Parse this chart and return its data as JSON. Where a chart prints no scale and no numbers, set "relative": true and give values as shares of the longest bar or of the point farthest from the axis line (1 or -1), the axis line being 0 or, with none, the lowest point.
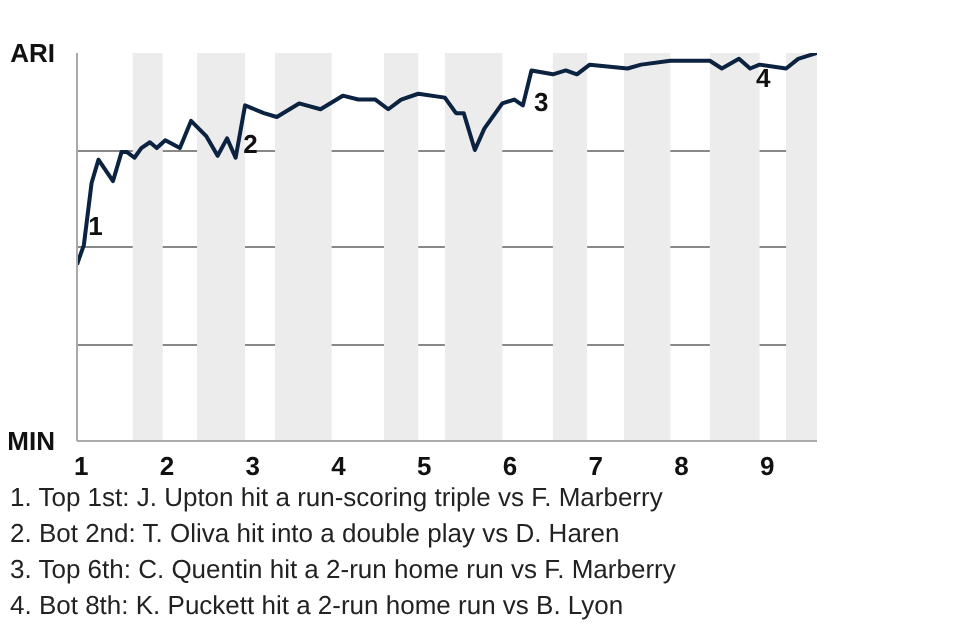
{
  "chart_data": {
    "type": "line",
    "relative": true,
    "x": [
      0.95,
      1.03,
      1.12,
      1.2,
      1.37,
      1.47,
      1.53,
      1.62,
      1.7,
      1.8,
      1.88,
      1.98,
      2.15,
      2.28,
      2.46,
      2.59,
      2.7,
      2.8,
      2.91,
      3.13,
      3.28,
      3.54,
      3.79,
      4.05,
      4.23,
      4.43,
      4.58,
      4.73,
      4.93,
      5.24,
      5.37,
      5.46,
      5.59,
      5.7,
      5.91,
      6.05,
      6.15,
      6.25,
      6.5,
      6.65,
      6.78,
      6.93,
      7.37,
      7.53,
      7.87,
      8.33,
      8.47,
      8.67,
      8.8,
      8.91,
      9.22,
      9.36,
      9.58
    ],
    "series": [
      {
        "color": "#0b2240",
        "values": [
          0.455,
          0.505,
          0.665,
          0.725,
          0.67,
          0.745,
          0.745,
          0.73,
          0.755,
          0.77,
          0.755,
          0.775,
          0.755,
          0.825,
          0.785,
          0.735,
          0.78,
          0.73,
          0.865,
          0.845,
          0.835,
          0.87,
          0.855,
          0.89,
          0.88,
          0.88,
          0.855,
          0.88,
          0.895,
          0.885,
          0.845,
          0.845,
          0.75,
          0.805,
          0.87,
          0.88,
          0.865,
          0.955,
          0.945,
          0.955,
          0.945,
          0.97,
          0.96,
          0.97,
          0.98,
          0.98,
          0.96,
          0.985,
          0.96,
          0.97,
          0.96,
          0.985,
          1.0
        ]
      }
    ],
    "xlim": [
      0.95,
      9.58
    ],
    "xticks": [
      1,
      2,
      3,
      4,
      5,
      6,
      7,
      8,
      9
    ],
    "grid": "y",
    "bands": [
      {
        "axis": "x",
        "from": 1.6,
        "to": 1.95,
        "color": "#ececec"
      },
      {
        "axis": "x",
        "from": 2.35,
        "to": 2.91,
        "color": "#ececec"
      },
      {
        "axis": "x",
        "from": 3.26,
        "to": 3.92,
        "color": "#ececec"
      },
      {
        "axis": "x",
        "from": 4.53,
        "to": 4.93,
        "color": "#ececec"
      },
      {
        "axis": "x",
        "from": 5.24,
        "to": 5.91,
        "color": "#ececec"
      },
      {
        "axis": "x",
        "from": 6.5,
        "to": 6.9,
        "color": "#ececec"
      },
      {
        "axis": "x",
        "from": 7.33,
        "to": 7.87,
        "color": "#ececec"
      },
      {
        "axis": "x",
        "from": 8.33,
        "to": 8.91,
        "color": "#ececec"
      },
      {
        "axis": "x",
        "from": 9.22,
        "to": 9.58,
        "color": "#ececec"
      }
    ],
    "annotations": [
      "ARI",
      "MIN",
      {
        "text": "1",
        "x": 1.08,
        "y": 0.555
      },
      {
        "text": "2",
        "x": 2.89,
        "y": 0.765
      },
      {
        "text": "3",
        "x": 6.28,
        "y": 0.875
      },
      {
        "text": "4",
        "x": 8.87,
        "y": 0.935
      },
      "1. Top 1st: J. Upton hit a run-scoring triple vs F. Marberry",
      "2. Bot 2nd: T. Oliva hit into a double play vs D. Haren",
      "3. Top 6th: C. Quentin hit a 2-run home run vs F. Marberry",
      "4. Bot 8th: K. Puckett hit a 2-run home run vs B. Lyon"
    ],
    "marker": "none",
    "line_style": "solid"
  }
}
